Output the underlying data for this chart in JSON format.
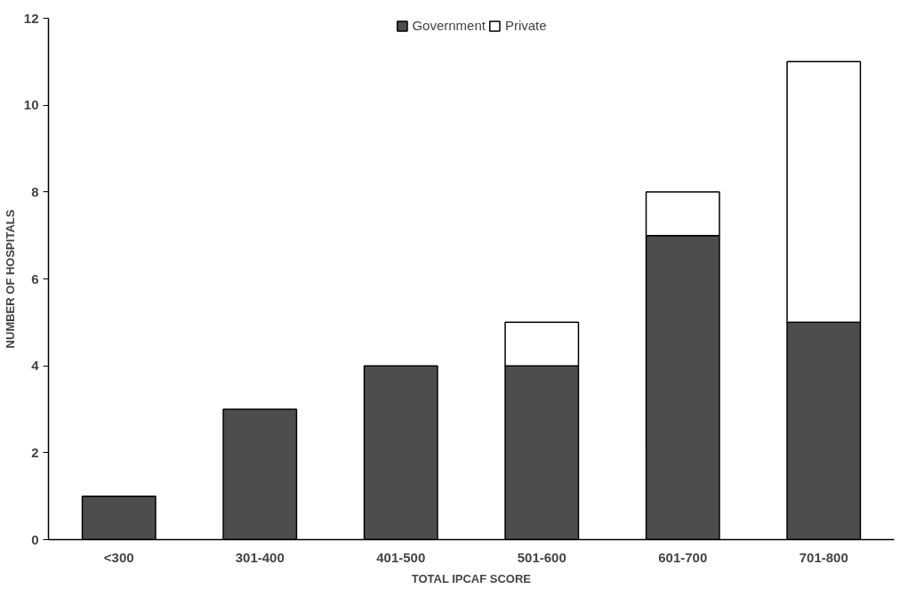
{
  "chart_data": {
    "type": "bar",
    "stacked": true,
    "xlabel": "TOTAL IPCAF SCORE",
    "ylabel": "NUMBER OF HOSPITALS",
    "categories": [
      "<300",
      "301-400",
      "401-500",
      "501-600",
      "601-700",
      "701-800"
    ],
    "series": [
      {
        "name": "Government",
        "color": "#4d4d4d",
        "values": [
          1,
          3,
          4,
          4,
          7,
          5
        ]
      },
      {
        "name": "Private",
        "color": "#ffffff",
        "values": [
          0,
          0,
          0,
          1,
          1,
          6
        ]
      }
    ],
    "ylim": [
      0,
      12
    ],
    "yticks": [
      0,
      2,
      4,
      6,
      8,
      10,
      12
    ],
    "grid": false,
    "legend": "top"
  }
}
